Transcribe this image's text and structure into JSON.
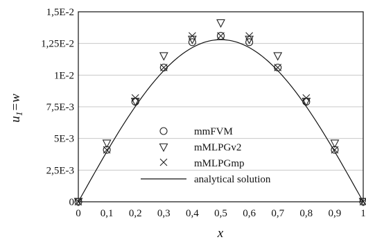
{
  "chart_data": {
    "type": "scatter",
    "xlabel": "x",
    "ylabel": "u1=w",
    "ylabel_base": "u",
    "ylabel_sub": "1",
    "ylabel_rest": "=w",
    "xlim": [
      0,
      1
    ],
    "ylim": [
      0,
      0.015
    ],
    "x_ticks": [
      {
        "value": 0,
        "label": "0"
      },
      {
        "value": 0.1,
        "label": "0,1"
      },
      {
        "value": 0.2,
        "label": "0,2"
      },
      {
        "value": 0.3,
        "label": "0,3"
      },
      {
        "value": 0.4,
        "label": "0,4"
      },
      {
        "value": 0.5,
        "label": "0,5"
      },
      {
        "value": 0.6,
        "label": "0,6"
      },
      {
        "value": 0.7,
        "label": "0,7"
      },
      {
        "value": 0.8,
        "label": "0,8"
      },
      {
        "value": 0.9,
        "label": "0,9"
      },
      {
        "value": 1,
        "label": "1"
      }
    ],
    "y_ticks": [
      {
        "value": 0,
        "label": "0"
      },
      {
        "value": 0.0025,
        "label": "2,5E-3"
      },
      {
        "value": 0.005,
        "label": "5E-3"
      },
      {
        "value": 0.0075,
        "label": "7,5E-3"
      },
      {
        "value": 0.01,
        "label": "1E-2"
      },
      {
        "value": 0.0125,
        "label": "1,25E-2"
      },
      {
        "value": 0.015,
        "label": "1,5E-2"
      }
    ],
    "grid": "horizontal",
    "legend_position": "bottom-center",
    "x": [
      0,
      0.1,
      0.2,
      0.3,
      0.4,
      0.5,
      0.6,
      0.7,
      0.8,
      0.9,
      1
    ],
    "series": [
      {
        "name": "mmFVM",
        "marker": "circle",
        "values": [
          0,
          0.0041,
          0.0079,
          0.0106,
          0.0126,
          0.0131,
          0.0126,
          0.0106,
          0.0079,
          0.0041,
          0
        ]
      },
      {
        "name": "mMLPGv2",
        "marker": "triangle-down",
        "values": [
          0,
          0.0046,
          0.0079,
          0.0115,
          0.0128,
          0.0141,
          0.0128,
          0.0115,
          0.0079,
          0.0046,
          0
        ]
      },
      {
        "name": "mMLPGmp",
        "marker": "x",
        "values": [
          0,
          0.0041,
          0.0082,
          0.0106,
          0.0131,
          0.0131,
          0.0131,
          0.0106,
          0.0082,
          0.0041,
          0
        ]
      }
    ],
    "line": {
      "name": "analytical solution",
      "peak_x": 0.5,
      "peak_y": 0.0128
    }
  }
}
